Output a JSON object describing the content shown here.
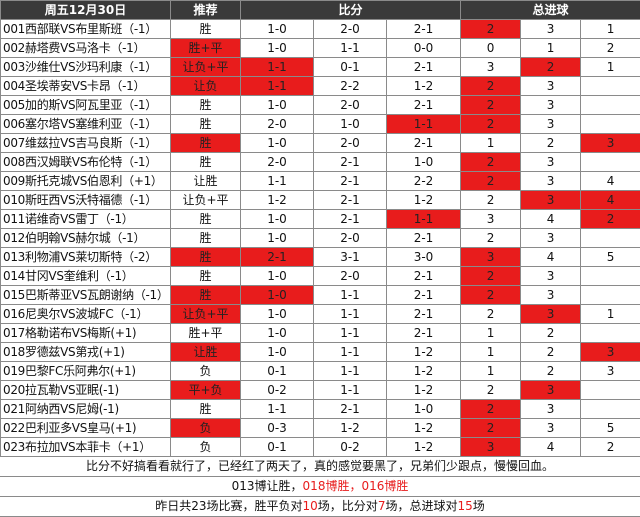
{
  "header": {
    "date": "周五12月30日",
    "recommend": "推荐",
    "score": "比分",
    "total_goals": "总进球"
  },
  "rows": [
    {
      "match": "001西部联VS布里斯班（-1）",
      "rec": "胜",
      "s1": "1-0",
      "s2": "2-0",
      "s3": "2-1",
      "g1": "2",
      "g2": "3",
      "g3": "1",
      "red": [
        "g1"
      ]
    },
    {
      "match": "002赫塔费VS马洛卡（-1）",
      "rec": "胜+平",
      "s1": "1-0",
      "s2": "1-1",
      "s3": "0-0",
      "g1": "0",
      "g2": "1",
      "g3": "2",
      "red": [
        "rec"
      ]
    },
    {
      "match": "003沙维仕VS沙玛利康（-1）",
      "rec": "让负+平",
      "s1": "1-1",
      "s2": "0-1",
      "s3": "2-1",
      "g1": "3",
      "g2": "2",
      "g3": "1",
      "red": [
        "rec",
        "s1",
        "g2"
      ]
    },
    {
      "match": "004圣埃蒂安VS卡昂（-1）",
      "rec": "让负",
      "s1": "1-1",
      "s2": "2-2",
      "s3": "1-2",
      "g1": "2",
      "g2": "3",
      "g3": "",
      "red": [
        "rec",
        "s1",
        "g1"
      ]
    },
    {
      "match": "005加的斯VS阿瓦里亚（-1）",
      "rec": "胜",
      "s1": "1-0",
      "s2": "2-0",
      "s3": "2-1",
      "g1": "2",
      "g2": "3",
      "g3": "",
      "red": [
        "g1"
      ]
    },
    {
      "match": "006塞尔塔VS塞维利亚（-1）",
      "rec": "胜",
      "s1": "2-0",
      "s2": "1-0",
      "s3": "1-1",
      "g1": "2",
      "g2": "3",
      "g3": "",
      "red": [
        "s3",
        "g1"
      ]
    },
    {
      "match": "007维兹拉VS吉马良斯（-1）",
      "rec": "胜",
      "s1": "1-0",
      "s2": "2-0",
      "s3": "2-1",
      "g1": "1",
      "g2": "2",
      "g3": "3",
      "red": [
        "rec",
        "g3"
      ]
    },
    {
      "match": "008西汉姆联VS布伦特（-1）",
      "rec": "胜",
      "s1": "2-0",
      "s2": "2-1",
      "s3": "1-0",
      "g1": "2",
      "g2": "3",
      "g3": "",
      "red": [
        "g1"
      ]
    },
    {
      "match": "009斯托克城VS伯恩利（+1）",
      "rec": "让胜",
      "s1": "1-1",
      "s2": "2-1",
      "s3": "2-2",
      "g1": "2",
      "g2": "3",
      "g3": "4",
      "red": [
        "g1"
      ]
    },
    {
      "match": "010斯旺西VS沃特福德（-1）",
      "rec": "让负+平",
      "s1": "1-2",
      "s2": "2-1",
      "s3": "1-2",
      "g1": "2",
      "g2": "3",
      "g3": "4",
      "red": [
        "g2",
        "g3"
      ]
    },
    {
      "match": "011诺维奇VS雷丁（-1）",
      "rec": "胜",
      "s1": "1-0",
      "s2": "2-1",
      "s3": "1-1",
      "g1": "3",
      "g2": "4",
      "g3": "2",
      "red": [
        "s3",
        "g3"
      ]
    },
    {
      "match": "012伯明翰VS赫尔城（-1）",
      "rec": "胜",
      "s1": "1-0",
      "s2": "2-0",
      "s3": "2-1",
      "g1": "2",
      "g2": "3",
      "g3": "",
      "red": []
    },
    {
      "match": "013利物浦VS莱切斯特（-2）",
      "rec": "胜",
      "s1": "2-1",
      "s2": "3-1",
      "s3": "3-0",
      "g1": "3",
      "g2": "4",
      "g3": "5",
      "red": [
        "rec",
        "s1",
        "g1"
      ]
    },
    {
      "match": "014甘冈VS奎维利（-1）",
      "rec": "胜",
      "s1": "1-0",
      "s2": "2-0",
      "s3": "2-1",
      "g1": "2",
      "g2": "3",
      "g3": "",
      "red": [
        "g1"
      ]
    },
    {
      "match": "015巴斯蒂亚VS瓦朗谢纳（-1）",
      "rec": "胜",
      "s1": "1-0",
      "s2": "1-1",
      "s3": "2-1",
      "g1": "2",
      "g2": "3",
      "g3": "",
      "red": [
        "rec",
        "s1",
        "g1"
      ]
    },
    {
      "match": "016尼奥尔VS波城FC（-1）",
      "rec": "让负+平",
      "s1": "1-0",
      "s2": "1-1",
      "s3": "2-1",
      "g1": "2",
      "g2": "3",
      "g3": "1",
      "red": [
        "rec",
        "g2"
      ]
    },
    {
      "match": "017格勒诺布VS梅斯(+1)",
      "rec": "胜+平",
      "s1": "1-0",
      "s2": "1-1",
      "s3": "2-1",
      "g1": "1",
      "g2": "2",
      "g3": "",
      "red": []
    },
    {
      "match": "018罗德兹VS第戎(+1)",
      "rec": "让胜",
      "s1": "1-0",
      "s2": "1-1",
      "s3": "1-2",
      "g1": "1",
      "g2": "2",
      "g3": "3",
      "red": [
        "rec",
        "g3"
      ]
    },
    {
      "match": "019巴黎FC乐阿弗尔(+1)",
      "rec": "负",
      "s1": "0-1",
      "s2": "1-1",
      "s3": "1-2",
      "g1": "1",
      "g2": "2",
      "g3": "3",
      "red": []
    },
    {
      "match": "020拉瓦勒VS亚眠(-1)",
      "rec": "平+负",
      "s1": "0-2",
      "s2": "1-1",
      "s3": "1-2",
      "g1": "2",
      "g2": "3",
      "g3": "",
      "red": [
        "rec",
        "g2"
      ]
    },
    {
      "match": "021阿纳西VS尼姆(-1)",
      "rec": "胜",
      "s1": "1-1",
      "s2": "2-1",
      "s3": "1-0",
      "g1": "2",
      "g2": "3",
      "g3": "",
      "red": [
        "g1"
      ]
    },
    {
      "match": "022巴利亚多VS皇马(+1)",
      "rec": "负",
      "s1": "0-3",
      "s2": "1-2",
      "s3": "1-2",
      "g1": "2",
      "g2": "3",
      "g3": "5",
      "red": [
        "rec",
        "g1"
      ]
    },
    {
      "match": "023布拉加VS本菲卡（+1）",
      "rec": "负",
      "s1": "0-1",
      "s2": "0-2",
      "s3": "1-2",
      "g1": "3",
      "g2": "4",
      "g3": "2",
      "red": [
        "g1"
      ]
    }
  ],
  "footer": {
    "comment": "比分不好搞看看就行了，已经红了两天了，真的感觉要黑了，兄弟们少跟点，慢慢回血。",
    "line2_a": "013博让胜，",
    "line2_b": "018博胜，",
    "line2_c": "016博胜",
    "line3_a": "昨日共23场比赛，胜平负对",
    "line3_b": "10",
    "line3_c": "场，比分对",
    "line3_d": "7",
    "line3_e": "场，总进球对",
    "line3_f": "15",
    "line3_g": "场"
  },
  "colors": {
    "highlight": "#e81c1c",
    "header_bg": "#3a3a3a"
  }
}
